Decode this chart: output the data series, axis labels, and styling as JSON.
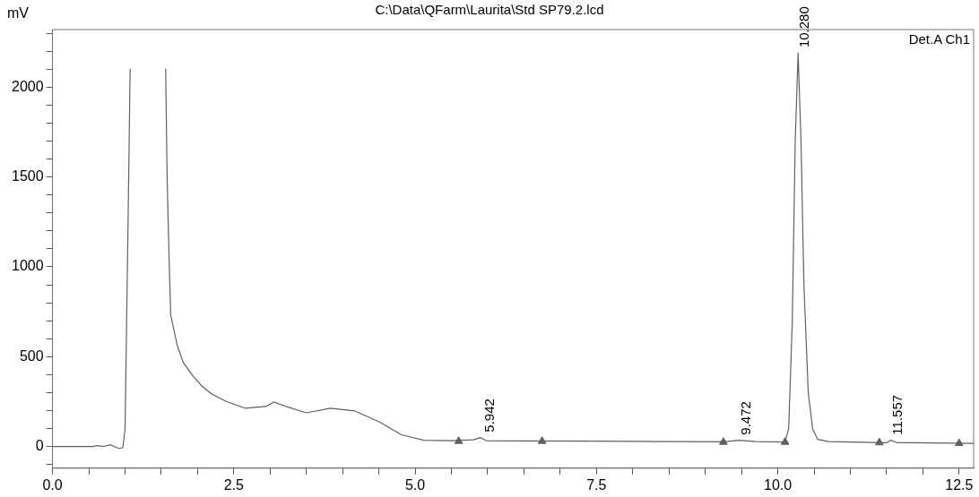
{
  "chart_data": {
    "type": "line",
    "title": "C:\\Data\\QFarm\\Laurita\\Std SP79.2.lcd",
    "ylabel": "mV",
    "xlim": [
      0,
      12.7
    ],
    "ylim": [
      -120,
      2320
    ],
    "xticks": [
      {
        "value": 0,
        "label": "0.0"
      },
      {
        "value": 0.5,
        "label": null
      },
      {
        "value": 1,
        "label": null
      },
      {
        "value": 1.5,
        "label": null
      },
      {
        "value": 2,
        "label": null
      },
      {
        "value": 2.5,
        "label": "2.5"
      },
      {
        "value": 3,
        "label": null
      },
      {
        "value": 3.5,
        "label": null
      },
      {
        "value": 4,
        "label": null
      },
      {
        "value": 4.5,
        "label": null
      },
      {
        "value": 5,
        "label": "5.0"
      },
      {
        "value": 5.5,
        "label": null
      },
      {
        "value": 6,
        "label": null
      },
      {
        "value": 6.5,
        "label": null
      },
      {
        "value": 7,
        "label": null
      },
      {
        "value": 7.5,
        "label": "7.5"
      },
      {
        "value": 8,
        "label": null
      },
      {
        "value": 8.5,
        "label": null
      },
      {
        "value": 9,
        "label": null
      },
      {
        "value": 9.5,
        "label": null
      },
      {
        "value": 10,
        "label": "10.0"
      },
      {
        "value": 10.5,
        "label": null
      },
      {
        "value": 11,
        "label": null
      },
      {
        "value": 11.5,
        "label": null
      },
      {
        "value": 12,
        "label": null
      },
      {
        "value": 12.5,
        "label": "12.5"
      }
    ],
    "yticks": [
      {
        "value": -100,
        "label": null
      },
      0,
      {
        "value": 100,
        "label": null
      },
      {
        "value": 200,
        "label": null
      },
      {
        "value": 300,
        "label": null
      },
      {
        "value": 400,
        "label": null
      },
      500,
      {
        "value": 600,
        "label": null
      },
      {
        "value": 700,
        "label": null
      },
      {
        "value": 800,
        "label": null
      },
      {
        "value": 900,
        "label": null
      },
      1000,
      {
        "value": 1100,
        "label": null
      },
      {
        "value": 1200,
        "label": null
      },
      {
        "value": 1300,
        "label": null
      },
      {
        "value": 1400,
        "label": null
      },
      1500,
      {
        "value": 1600,
        "label": null
      },
      {
        "value": 1700,
        "label": null
      },
      {
        "value": 1800,
        "label": null
      },
      {
        "value": 1900,
        "label": null
      },
      2000,
      {
        "value": 2100,
        "label": null
      },
      {
        "value": 2200,
        "label": null
      },
      {
        "value": 2300,
        "label": null
      }
    ],
    "grid": false,
    "legend": false,
    "marker": "none",
    "line_style": "solid",
    "series": [
      {
        "color": "#606060",
        "x": [
          0,
          0.3,
          0.55,
          0.62,
          0.7,
          0.8,
          0.85,
          0.92,
          0.97,
          1.0,
          1.04,
          1.07,
          1.3,
          1.56,
          1.58,
          1.61,
          1.63,
          1.72,
          1.8,
          1.93,
          2.05,
          2.19,
          2.4,
          2.66,
          2.94,
          3.05,
          3.22,
          3.5,
          3.83,
          4.17,
          4.51,
          4.81,
          5.12,
          5.51,
          5.8,
          5.9,
          5.98,
          6.3,
          7.5,
          8.5,
          9.25,
          9.47,
          9.7,
          10.1,
          10.15,
          10.2,
          10.24,
          10.28,
          10.32,
          10.36,
          10.42,
          10.48,
          10.55,
          10.7,
          11.5,
          11.557,
          11.65,
          12.7
        ],
        "values": [
          0,
          0,
          0,
          5,
          0,
          10,
          0,
          -10,
          -5,
          100,
          1200,
          2100,
          null,
          2100,
          1500,
          1000,
          730,
          563,
          470,
          395,
          340,
          294,
          250,
          213,
          223,
          248,
          223,
          188,
          213,
          198,
          137,
          66,
          35,
          33,
          38,
          50,
          33,
          32,
          30,
          28,
          27,
          35,
          28,
          25,
          100,
          700,
          1700,
          2190,
          1700,
          900,
          300,
          100,
          40,
          28,
          22,
          35,
          22,
          18
        ]
      },
      {
        "type": "scatter",
        "color": "#606060",
        "marker": "triangle",
        "x": [
          5.6,
          6.75,
          9.25,
          10.1,
          11.4,
          12.5
        ],
        "values": [
          30,
          30,
          25,
          25,
          22,
          18
        ]
      }
    ],
    "annotations": [
      {
        "text": "5.942",
        "x": 5.942,
        "y": 50
      },
      {
        "text": "9.472",
        "x": 9.472,
        "y": 35
      },
      {
        "text": "10.280",
        "x": 10.28,
        "y": 2190
      },
      {
        "text": "11.557",
        "x": 11.557,
        "y": 35
      },
      "Det.A Ch1"
    ]
  }
}
